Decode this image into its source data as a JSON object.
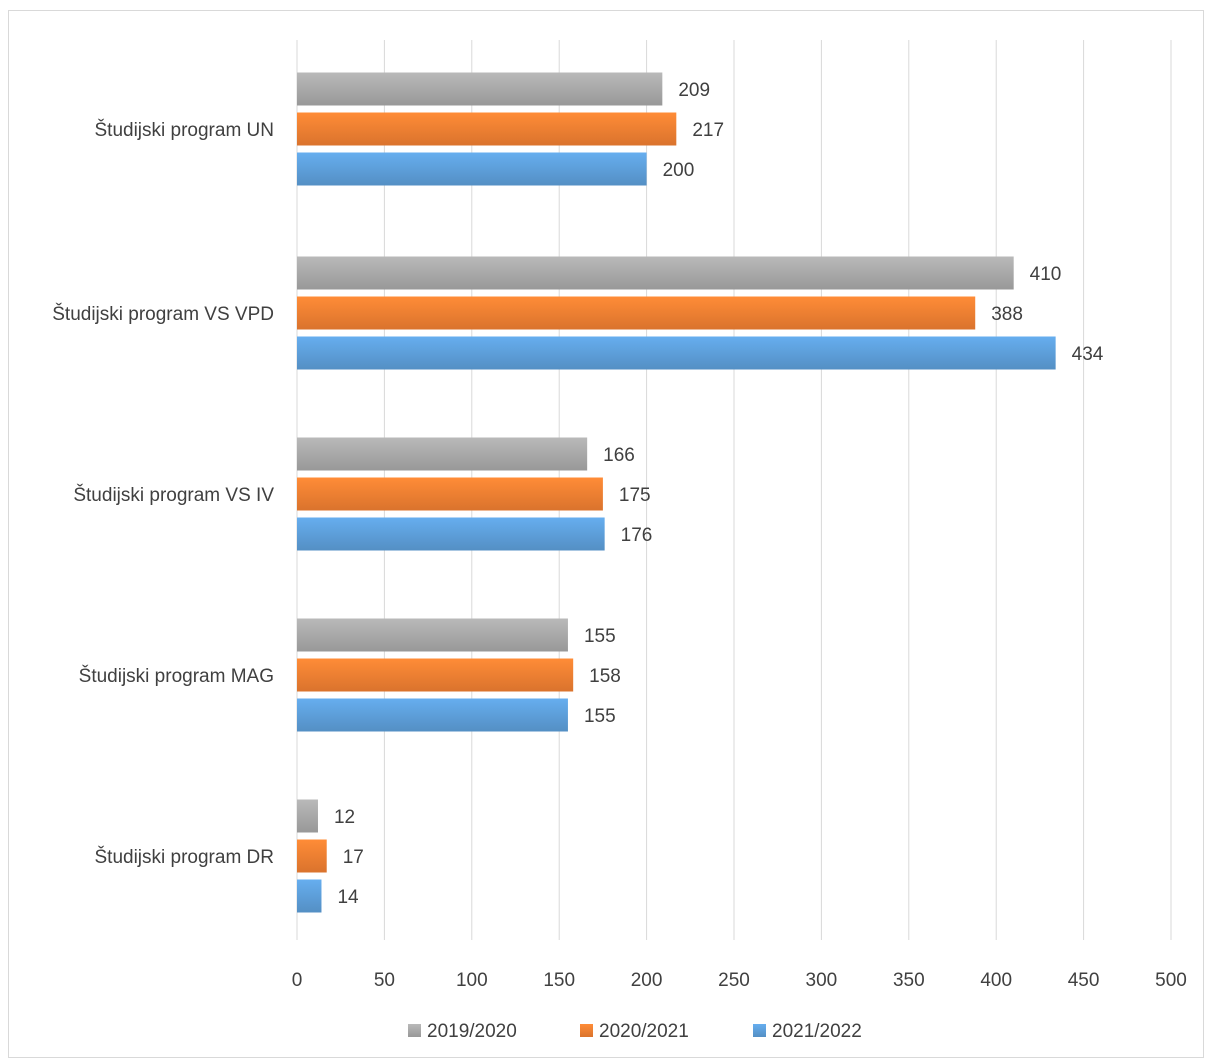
{
  "chart_data": {
    "type": "bar",
    "orientation": "horizontal",
    "categories": [
      "Študijski program UN",
      "Študijski program VS VPD",
      "Študijski program VS IV",
      "Študijski program MAG",
      "Študijski program DR"
    ],
    "series": [
      {
        "name": "2019/2020",
        "color": "#a5a5a5",
        "values": [
          209,
          410,
          166,
          155,
          12
        ]
      },
      {
        "name": "2020/2021",
        "color": "#ed7d31",
        "values": [
          217,
          388,
          175,
          158,
          17
        ]
      },
      {
        "name": "2021/2022",
        "color": "#5b9bd5",
        "values": [
          200,
          434,
          176,
          155,
          14
        ]
      }
    ],
    "xlim": [
      0,
      500
    ],
    "xticks": [
      0,
      50,
      100,
      150,
      200,
      250,
      300,
      350,
      400,
      450,
      500
    ],
    "grid": true,
    "legend": "bottom",
    "data_labels": true
  }
}
